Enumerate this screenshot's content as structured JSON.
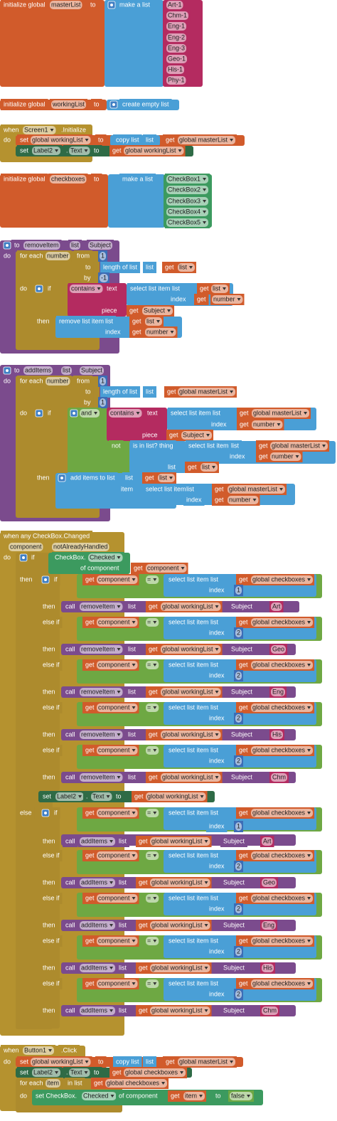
{
  "blocks": [
    {
      "rows": [
        [
          "initialize global",
          "masterList",
          "to",
          "make a list",
          "Art-1"
        ],
        [
          "Chm-1"
        ],
        [
          "Eng-1"
        ],
        [
          "Eng-2"
        ],
        [
          "Eng-3"
        ],
        [
          "Geo-1"
        ],
        [
          "His-1"
        ],
        [
          "Phy-1"
        ]
      ]
    },
    {
      "rows": [
        [
          "initialize global",
          "workingList",
          "to",
          "create empty list"
        ]
      ]
    },
    {
      "rows": [
        [
          "when",
          "Screen1",
          ".Initialize"
        ],
        [
          "do",
          "set",
          "global workingList",
          "to",
          "copy list",
          "list",
          "get",
          "global masterList"
        ],
        [
          "set",
          "Label2",
          ".",
          "Text",
          "to",
          "get",
          "global workingList"
        ]
      ]
    },
    {
      "rows": [
        [
          "initialize global",
          "checkboxes",
          "to",
          "make a list",
          "CheckBox1"
        ],
        [
          "CheckBox2"
        ],
        [
          "CheckBox3"
        ],
        [
          "CheckBox4"
        ],
        [
          "CheckBox5"
        ]
      ]
    },
    {
      "rows": [
        [
          "to",
          "removeItem",
          "list",
          "Subject"
        ],
        [
          "do",
          "for each",
          "number",
          "from",
          "1"
        ],
        [
          "to",
          "length of list",
          "list",
          "get",
          "list"
        ],
        [
          "by",
          "-1"
        ],
        [
          "do",
          "if",
          "contains",
          "text",
          "select list item",
          "list",
          "get",
          "list"
        ],
        [
          "index",
          "get",
          "number"
        ],
        [
          "piece",
          "get",
          "Subject"
        ],
        [
          "then",
          "remove list item",
          "list",
          "get",
          "list"
        ],
        [
          "index",
          "get",
          "number"
        ]
      ]
    },
    {
      "rows": [
        [
          "to",
          "addItems",
          "list",
          "Subject"
        ],
        [
          "do",
          "for each",
          "number",
          "from",
          "1"
        ],
        [
          "to",
          "length of list",
          "list",
          "get",
          "global masterList"
        ],
        [
          "by",
          "1"
        ],
        [
          "do",
          "if",
          "and",
          "contains",
          "text",
          "select list item",
          "list",
          "get",
          "global masterList"
        ],
        [
          "index",
          "get",
          "number"
        ],
        [
          "piece",
          "get",
          "Subject"
        ],
        [
          "not",
          "is in list? thing",
          "select list item",
          "list",
          "get",
          "global masterList"
        ],
        [
          "index",
          "get",
          "number"
        ],
        [
          "list",
          "get",
          "list"
        ],
        [
          "then",
          "add items to list",
          "list",
          "get",
          "list"
        ],
        [
          "item",
          "select list item",
          "list",
          "get",
          "global masterList"
        ],
        [
          "index",
          "get",
          "number"
        ]
      ]
    },
    {
      "rows": [
        [
          "when any CheckBox.Changed"
        ],
        [
          "component",
          "notAlreadyHandled"
        ],
        [
          "do",
          "if",
          "CheckBox.",
          "Checked"
        ],
        [
          "of component",
          "get",
          "component"
        ],
        [
          "then",
          "if",
          "get",
          "component",
          "=",
          "select list item",
          "list",
          "get",
          "global checkboxes"
        ],
        [
          "index",
          "1"
        ],
        [
          "then",
          "call",
          "removeItem",
          "list",
          "get",
          "global workingList",
          "Subject",
          "Art"
        ],
        [
          "else if",
          "get",
          "component",
          "=",
          "select list item",
          "list",
          "get",
          "global checkboxes"
        ],
        [
          "index",
          "2"
        ],
        [
          "then",
          "call",
          "removeItem",
          "list",
          "get",
          "global workingList",
          "Subject",
          "Geo"
        ],
        [
          "else if",
          "get",
          "component",
          "=",
          "select list item",
          "list",
          "get",
          "global checkboxes"
        ],
        [
          "index",
          "2"
        ],
        [
          "then",
          "call",
          "removeItem",
          "list",
          "get",
          "global workingList",
          "Subject",
          "Eng"
        ],
        [
          "else if",
          "get",
          "component",
          "=",
          "select list item",
          "list",
          "get",
          "global checkboxes"
        ],
        [
          "index",
          "2"
        ],
        [
          "then",
          "call",
          "removeItem",
          "list",
          "get",
          "global workingList",
          "Subject",
          "His"
        ],
        [
          "else if",
          "get",
          "component",
          "=",
          "select list item",
          "list",
          "get",
          "global checkboxes"
        ],
        [
          "index",
          "2"
        ],
        [
          "then",
          "call",
          "removeItem",
          "list",
          "get",
          "global workingList",
          "Subject",
          "Chm"
        ],
        [
          "set",
          "Label2",
          ".",
          "Text",
          "to",
          "get",
          "global workingList"
        ],
        [
          "else",
          "if",
          "get",
          "component",
          "=",
          "select list item",
          "list",
          "get",
          "global checkboxes"
        ],
        [
          "index",
          "1"
        ],
        [
          "then",
          "call",
          "addItems",
          "list",
          "get",
          "global workingList",
          "Subject",
          "Art"
        ],
        [
          "else if",
          "get",
          "component",
          "=",
          "select list item",
          "list",
          "get",
          "global checkboxes"
        ],
        [
          "index",
          "2"
        ],
        [
          "then",
          "call",
          "addItems",
          "list",
          "get",
          "global workingList",
          "Subject",
          "Geo"
        ],
        [
          "else if",
          "get",
          "component",
          "=",
          "select list item",
          "list",
          "get",
          "global checkboxes"
        ],
        [
          "index",
          "2"
        ],
        [
          "then",
          "call",
          "addItems",
          "list",
          "get",
          "global workingList",
          "Subject",
          "Eng"
        ],
        [
          "else if",
          "get",
          "component",
          "=",
          "select list item",
          "list",
          "get",
          "global checkboxes"
        ],
        [
          "index",
          "2"
        ],
        [
          "then",
          "call",
          "addItems",
          "list",
          "get",
          "global workingList",
          "Subject",
          "His"
        ],
        [
          "else if",
          "get",
          "component",
          "=",
          "select list item",
          "list",
          "get",
          "global checkboxes"
        ],
        [
          "index",
          "2"
        ],
        [
          "then",
          "call",
          "addItems",
          "list",
          "get",
          "global workingList",
          "Subject",
          "Chm"
        ]
      ]
    },
    {
      "rows": [
        [
          "when",
          "Button1",
          ".Click"
        ],
        [
          "do",
          "set",
          "global workingList",
          "to",
          "copy list",
          "list",
          "get",
          "global masterList"
        ],
        [
          "set",
          "Label2",
          ".",
          "Text",
          "to",
          "get",
          "global checkboxes"
        ],
        [
          "for each",
          "item",
          "in list",
          "get",
          "global checkboxes"
        ],
        [
          "do",
          "set CheckBox.",
          "Checked",
          "of component",
          "get",
          "item",
          "to",
          "false"
        ]
      ]
    }
  ]
}
